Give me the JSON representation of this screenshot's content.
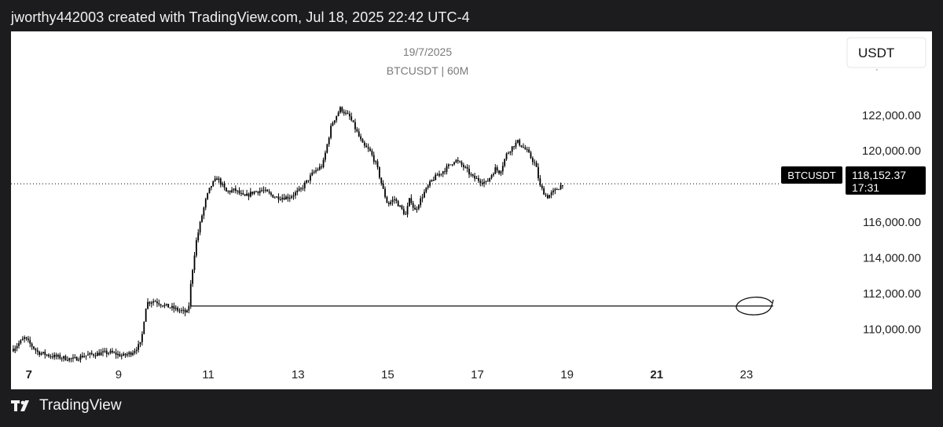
{
  "header": {
    "caption": "jworthy442003 created with TradingView.com, Jul 18, 2025 22:42 UTC-4"
  },
  "footer": {
    "brand": "TradingView"
  },
  "colors": {
    "background": "#1c1c1e",
    "panel": "#ffffff",
    "candle": "#000000",
    "price_line": "#000000",
    "label_bg": "#000000",
    "label_text": "#ffffff",
    "muted_text": "#7a7a7a"
  },
  "chart_data": {
    "type": "line",
    "title": "19/7/2025",
    "subtitle": "BTCUSDT | 60M",
    "currency": "USDT",
    "symbol_label": "BTCUSDT",
    "last_price_label": "118,152.37",
    "countdown": "17:31",
    "last_price": 118152.37,
    "horizontal_level": 111300,
    "x_ticks": [
      {
        "label": "7",
        "day": 7
      },
      {
        "label": "9",
        "day": 9
      },
      {
        "label": "11",
        "day": 11
      },
      {
        "label": "13",
        "day": 13
      },
      {
        "label": "15",
        "day": 15
      },
      {
        "label": "17",
        "day": 17
      },
      {
        "label": "19",
        "day": 19
      },
      {
        "label": "21",
        "day": 21
      },
      {
        "label": "23",
        "day": 23
      }
    ],
    "y_ticks": [
      {
        "label": "122,000.00",
        "value": 122000
      },
      {
        "label": "120,000.00",
        "value": 120000
      },
      {
        "label": "116,000.00",
        "value": 116000
      },
      {
        "label": "114,000.00",
        "value": 114000
      },
      {
        "label": "112,000.00",
        "value": 112000
      },
      {
        "label": "110,000.00",
        "value": 110000
      }
    ],
    "xlim": [
      6.6,
      25.0
    ],
    "ylim": [
      108300,
      126700
    ],
    "series": [
      {
        "x": [
          6.65,
          6.9,
          7.2,
          7.5,
          7.75,
          8.0,
          8.2,
          8.45,
          8.8,
          9.1,
          9.3,
          9.5,
          9.6,
          9.65,
          9.8,
          10.0,
          10.3,
          10.55,
          10.62,
          10.72,
          10.85,
          10.95,
          11.05,
          11.2,
          11.4,
          11.6,
          11.8,
          12.0,
          12.2,
          12.5,
          12.8,
          13.05,
          13.35,
          13.55,
          13.75,
          13.95,
          14.05,
          14.15,
          14.25,
          14.45,
          14.6,
          14.75,
          14.9,
          15.0,
          15.15,
          15.4,
          15.5,
          15.6,
          15.8,
          16.0,
          16.3,
          16.5,
          16.7,
          16.9,
          17.0,
          17.2,
          17.4,
          17.5,
          17.65,
          17.8,
          17.9,
          18.1,
          18.3,
          18.4,
          18.55,
          18.65,
          18.75,
          18.9
        ],
        "y": [
          108900,
          109500,
          108700,
          108500,
          108400,
          108300,
          108500,
          108600,
          108700,
          108500,
          108700,
          109200,
          111200,
          111500,
          111600,
          111350,
          111100,
          110900,
          112800,
          114800,
          116300,
          117300,
          118000,
          118500,
          117700,
          117800,
          117400,
          117700,
          117800,
          117400,
          117400,
          117800,
          118800,
          119200,
          121500,
          122400,
          122100,
          121900,
          121400,
          120300,
          120000,
          119200,
          117800,
          117000,
          117300,
          116400,
          117400,
          116600,
          117600,
          118400,
          119000,
          119500,
          119100,
          118500,
          118400,
          118200,
          119000,
          118800,
          119800,
          120300,
          120500,
          120000,
          119200,
          118000,
          117400,
          117600,
          117800,
          118152
        ]
      }
    ],
    "annotation": "circled support level"
  }
}
